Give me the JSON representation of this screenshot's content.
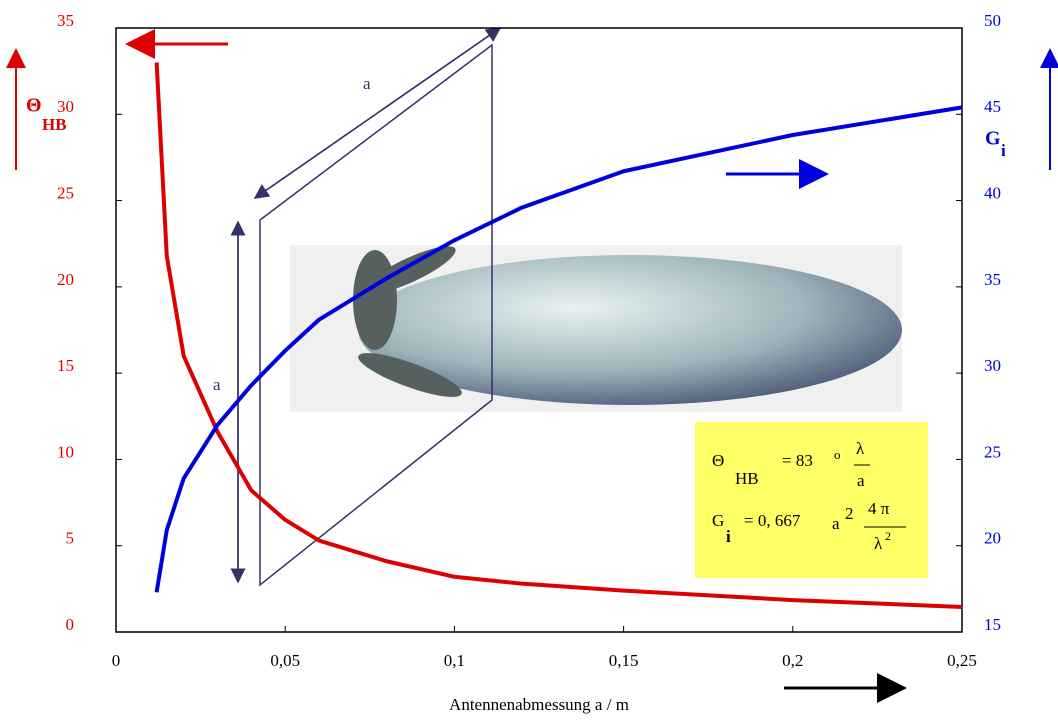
{
  "chart_data": {
    "type": "line",
    "x_label": "Antennenabmessung a / m",
    "y_label": {
      "symbol": "Θ",
      "sub": "HB"
    },
    "y2_label": {
      "symbol": "G",
      "sub": "i"
    },
    "x": [
      0.012,
      0.015,
      0.02,
      0.03,
      0.04,
      0.05,
      0.06,
      0.08,
      0.1,
      0.12,
      0.15,
      0.2,
      0.25
    ],
    "series": [
      {
        "color": "#dd0000",
        "values": [
          33,
          21.8,
          16,
          11.6,
          8.2,
          6.5,
          5.3,
          4.1,
          3.2,
          2.8,
          2.4,
          1.85,
          1.45
        ]
      },
      {
        "color": "#0000dd",
        "axis": "y2",
        "values": [
          17.3,
          20.9,
          23.9,
          27,
          29.3,
          31.3,
          33.1,
          35.5,
          37.7,
          39.6,
          41.7,
          43.8,
          45.4
        ]
      }
    ],
    "xlim": [
      0,
      0.25
    ],
    "xticks": [
      0,
      {
        "value": 0.05,
        "label": "0,05"
      },
      {
        "value": 0.1,
        "label": "0,1"
      },
      {
        "value": 0.15,
        "label": "0,15"
      },
      {
        "value": 0.2,
        "label": "0,2"
      },
      {
        "value": 0.25,
        "label": "0,25"
      }
    ],
    "ylim": [
      0,
      35
    ],
    "yticks": [
      0,
      5,
      10,
      15,
      20,
      25,
      30,
      35
    ],
    "y2lim": [
      15,
      50
    ],
    "y2ticks": [
      15,
      20,
      25,
      30,
      35,
      40,
      45,
      50
    ],
    "annotations": {
      "aperture_labels": [
        "a",
        "a"
      ],
      "formula": {
        "theta": "Θ",
        "theta_sub": "HB",
        "theta_eq": "= 83",
        "deg": "o",
        "lambda_num": "λ",
        "a_den": "a",
        "g": "G",
        "g_sub": "i",
        "g_eq": "= 0, 667",
        "a": "a",
        "exp": "2",
        "num": "4 π",
        "den": "λ",
        "den_exp": "2"
      }
    }
  }
}
